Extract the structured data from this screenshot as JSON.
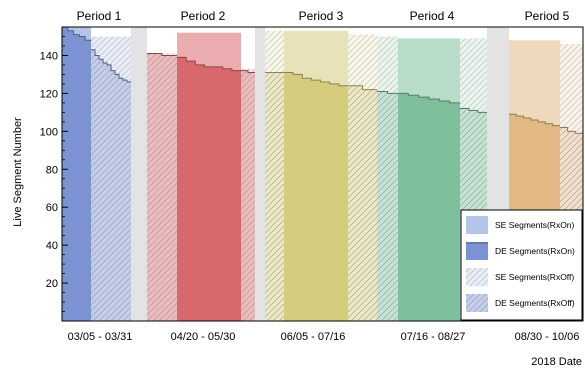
{
  "chart_data": {
    "type": "area",
    "ylabel": "Live Segment Number",
    "xlabel": "2018 Date",
    "ylim": [
      0,
      155
    ],
    "yticks": [
      20,
      40,
      60,
      80,
      100,
      120,
      140
    ],
    "grid": false,
    "legend_position": "bottom-right",
    "legend": [
      {
        "key": "se_on",
        "label": "SE  Segments(RxOn)"
      },
      {
        "key": "de_on",
        "label": "DE  Segments(RxOn)"
      },
      {
        "key": "se_off",
        "label": "SE  Segments(RxOff)"
      },
      {
        "key": "de_off",
        "label": "DE Segments(RxOff)"
      }
    ],
    "periods": [
      {
        "label": "Period 1",
        "date_range": "03/05 - 03/31",
        "color": "#7b93d3",
        "rxon_se": 155,
        "rxon_de": [
          155,
          153,
          151,
          150,
          148
        ],
        "rxoff_se": 150,
        "rxoff_de": [
          143,
          140,
          138,
          136,
          135,
          132,
          130,
          128,
          127,
          126
        ]
      },
      {
        "label": "Period 2",
        "date_range": "04/20 - 05/30",
        "color": "#d9686c",
        "rxoff_se_before": 141,
        "rxoff_de_before": [
          141,
          140
        ],
        "rxon_se": 152,
        "rxon_de": [
          139,
          137,
          135,
          134,
          134,
          133,
          132
        ],
        "rxoff_se": 133,
        "rxoff_de": [
          132,
          131
        ]
      },
      {
        "label": "Period 3",
        "date_range": "06/05 - 07/16",
        "color": "#d4cb7c",
        "rxoff_se_before": 153,
        "rxoff_de_before": [
          131,
          131
        ],
        "rxon_se": 153,
        "rxon_de": [
          131,
          130,
          128,
          127,
          126,
          125,
          124
        ],
        "rxoff_se": 151,
        "rxoff_de": [
          124,
          122
        ]
      },
      {
        "label": "Period 4",
        "date_range": "07/16 - 08/27",
        "color": "#7fc09c",
        "rxoff_se_before": 150,
        "rxoff_de_before": [
          121,
          120
        ],
        "rxon_se": 149,
        "rxon_de": [
          120,
          119,
          118,
          117,
          116,
          115
        ],
        "rxoff_se": 149,
        "rxoff_de": [
          112,
          111,
          110
        ]
      },
      {
        "label": "Period 5",
        "date_range": "08/30 - 10/06",
        "color": "#e2b985",
        "rxon_se": 148,
        "rxon_de": [
          109,
          108,
          107,
          106,
          105,
          104,
          103
        ],
        "rxoff_se": 146,
        "rxoff_de": [
          102,
          100,
          99
        ]
      }
    ]
  }
}
